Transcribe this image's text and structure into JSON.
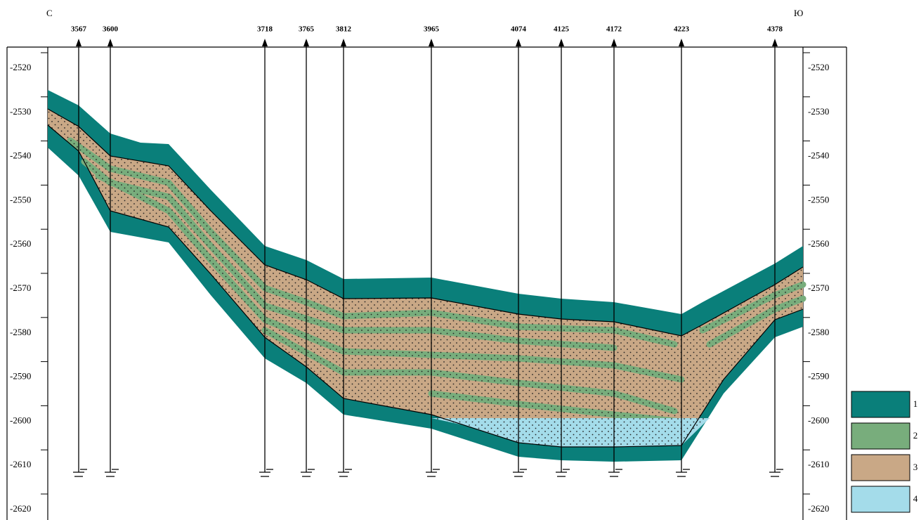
{
  "corners": {
    "left": "С",
    "right": "Ю"
  },
  "wells": [
    "3567",
    "3600",
    "3718",
    "3765",
    "3812",
    "3965",
    "4074",
    "4125",
    "4172",
    "4223",
    "4378"
  ],
  "depth_ticks": [
    -2520,
    -2530,
    -2540,
    -2550,
    -2560,
    -2570,
    -2580,
    -2590,
    -2600,
    -2610,
    -2620
  ],
  "legend": [
    {
      "label": "1",
      "color": "#0a7f7a"
    },
    {
      "label": "2",
      "color": "#78ad7c"
    },
    {
      "label": "3",
      "color": "#c9a886"
    },
    {
      "label": "4",
      "color": "#a4dcea"
    }
  ]
}
